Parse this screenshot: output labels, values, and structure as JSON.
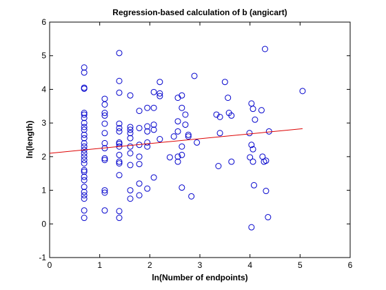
{
  "chart_data": {
    "type": "scatter",
    "title": "Regression-based calculation of b (angicart)",
    "xlabel": "ln(Number of endpoints)",
    "ylabel": "ln(length)",
    "xlim": [
      0,
      6
    ],
    "ylim": [
      -1,
      6
    ],
    "xticks": [
      "0",
      "1",
      "2",
      "3",
      "4",
      "5",
      "6"
    ],
    "yticks": [
      "-1",
      "0",
      "1",
      "2",
      "3",
      "4",
      "5",
      "6"
    ],
    "grid": false,
    "legend": "none",
    "marker_color": "#0000cc",
    "line_color": "#dd0000",
    "regression_line": {
      "x": [
        0,
        5.05
      ],
      "y": [
        2.1,
        2.83
      ]
    },
    "points": [
      {
        "x": 0.69,
        "y": 4.65
      },
      {
        "x": 0.69,
        "y": 4.5
      },
      {
        "x": 0.69,
        "y": 4.05
      },
      {
        "x": 0.69,
        "y": 4.02
      },
      {
        "x": 0.69,
        "y": 3.3
      },
      {
        "x": 0.69,
        "y": 3.25
      },
      {
        "x": 0.69,
        "y": 3.15
      },
      {
        "x": 0.69,
        "y": 3.0
      },
      {
        "x": 0.69,
        "y": 2.88
      },
      {
        "x": 0.69,
        "y": 2.8
      },
      {
        "x": 0.69,
        "y": 2.65
      },
      {
        "x": 0.69,
        "y": 2.55
      },
      {
        "x": 0.69,
        "y": 2.4
      },
      {
        "x": 0.69,
        "y": 2.3
      },
      {
        "x": 0.69,
        "y": 2.2
      },
      {
        "x": 0.69,
        "y": 2.1
      },
      {
        "x": 0.69,
        "y": 2.0
      },
      {
        "x": 0.69,
        "y": 1.9
      },
      {
        "x": 0.69,
        "y": 1.8
      },
      {
        "x": 0.69,
        "y": 1.6
      },
      {
        "x": 0.69,
        "y": 1.55
      },
      {
        "x": 0.69,
        "y": 1.4
      },
      {
        "x": 0.69,
        "y": 1.3
      },
      {
        "x": 0.69,
        "y": 1.1
      },
      {
        "x": 0.69,
        "y": 0.95
      },
      {
        "x": 0.69,
        "y": 0.85
      },
      {
        "x": 0.69,
        "y": 0.75
      },
      {
        "x": 0.69,
        "y": 0.4
      },
      {
        "x": 0.69,
        "y": 0.18
      },
      {
        "x": 1.1,
        "y": 3.72
      },
      {
        "x": 1.1,
        "y": 3.55
      },
      {
        "x": 1.1,
        "y": 3.3
      },
      {
        "x": 1.1,
        "y": 3.22
      },
      {
        "x": 1.1,
        "y": 2.98
      },
      {
        "x": 1.1,
        "y": 2.7
      },
      {
        "x": 1.1,
        "y": 2.4
      },
      {
        "x": 1.1,
        "y": 2.25
      },
      {
        "x": 1.1,
        "y": 1.95
      },
      {
        "x": 1.1,
        "y": 1.9
      },
      {
        "x": 1.1,
        "y": 1.0
      },
      {
        "x": 1.1,
        "y": 0.93
      },
      {
        "x": 1.1,
        "y": 0.4
      },
      {
        "x": 1.39,
        "y": 5.08
      },
      {
        "x": 1.39,
        "y": 4.25
      },
      {
        "x": 1.39,
        "y": 3.9
      },
      {
        "x": 1.39,
        "y": 2.98
      },
      {
        "x": 1.39,
        "y": 2.85
      },
      {
        "x": 1.39,
        "y": 2.75
      },
      {
        "x": 1.39,
        "y": 2.42
      },
      {
        "x": 1.39,
        "y": 2.38
      },
      {
        "x": 1.39,
        "y": 2.3
      },
      {
        "x": 1.39,
        "y": 2.05
      },
      {
        "x": 1.39,
        "y": 1.85
      },
      {
        "x": 1.39,
        "y": 1.8
      },
      {
        "x": 1.39,
        "y": 1.45
      },
      {
        "x": 1.39,
        "y": 0.38
      },
      {
        "x": 1.39,
        "y": 0.18
      },
      {
        "x": 1.61,
        "y": 3.82
      },
      {
        "x": 1.61,
        "y": 2.88
      },
      {
        "x": 1.61,
        "y": 2.8
      },
      {
        "x": 1.61,
        "y": 2.7
      },
      {
        "x": 1.61,
        "y": 2.55
      },
      {
        "x": 1.61,
        "y": 2.3
      },
      {
        "x": 1.61,
        "y": 2.1
      },
      {
        "x": 1.61,
        "y": 1.75
      },
      {
        "x": 1.61,
        "y": 1.0
      },
      {
        "x": 1.61,
        "y": 0.75
      },
      {
        "x": 1.79,
        "y": 3.36
      },
      {
        "x": 1.79,
        "y": 2.85
      },
      {
        "x": 1.79,
        "y": 2.35
      },
      {
        "x": 1.79,
        "y": 2.0
      },
      {
        "x": 1.79,
        "y": 1.78
      },
      {
        "x": 1.79,
        "y": 1.2
      },
      {
        "x": 1.79,
        "y": 0.85
      },
      {
        "x": 1.95,
        "y": 3.45
      },
      {
        "x": 1.95,
        "y": 2.9
      },
      {
        "x": 1.95,
        "y": 2.75
      },
      {
        "x": 1.95,
        "y": 2.42
      },
      {
        "x": 1.95,
        "y": 2.3
      },
      {
        "x": 1.95,
        "y": 1.05
      },
      {
        "x": 2.08,
        "y": 3.92
      },
      {
        "x": 2.08,
        "y": 3.45
      },
      {
        "x": 2.08,
        "y": 2.95
      },
      {
        "x": 2.08,
        "y": 2.8
      },
      {
        "x": 2.08,
        "y": 1.38
      },
      {
        "x": 2.2,
        "y": 4.22
      },
      {
        "x": 2.2,
        "y": 3.88
      },
      {
        "x": 2.2,
        "y": 3.8
      },
      {
        "x": 2.2,
        "y": 2.52
      },
      {
        "x": 2.4,
        "y": 1.98
      },
      {
        "x": 2.48,
        "y": 2.6
      },
      {
        "x": 2.56,
        "y": 3.75
      },
      {
        "x": 2.56,
        "y": 3.05
      },
      {
        "x": 2.56,
        "y": 2.75
      },
      {
        "x": 2.56,
        "y": 2.0
      },
      {
        "x": 2.56,
        "y": 1.85
      },
      {
        "x": 2.64,
        "y": 3.82
      },
      {
        "x": 2.64,
        "y": 3.45
      },
      {
        "x": 2.64,
        "y": 2.3
      },
      {
        "x": 2.64,
        "y": 2.05
      },
      {
        "x": 2.64,
        "y": 1.08
      },
      {
        "x": 2.71,
        "y": 3.25
      },
      {
        "x": 2.71,
        "y": 2.95
      },
      {
        "x": 2.77,
        "y": 2.65
      },
      {
        "x": 2.77,
        "y": 2.6
      },
      {
        "x": 2.83,
        "y": 0.82
      },
      {
        "x": 2.89,
        "y": 4.4
      },
      {
        "x": 2.94,
        "y": 2.42
      },
      {
        "x": 3.33,
        "y": 3.25
      },
      {
        "x": 3.37,
        "y": 1.72
      },
      {
        "x": 3.4,
        "y": 3.18
      },
      {
        "x": 3.4,
        "y": 2.7
      },
      {
        "x": 3.5,
        "y": 4.22
      },
      {
        "x": 3.56,
        "y": 3.75
      },
      {
        "x": 3.58,
        "y": 3.3
      },
      {
        "x": 3.63,
        "y": 3.22
      },
      {
        "x": 3.63,
        "y": 1.85
      },
      {
        "x": 3.99,
        "y": 2.7
      },
      {
        "x": 4.0,
        "y": 1.98
      },
      {
        "x": 4.03,
        "y": 3.58
      },
      {
        "x": 4.03,
        "y": 2.35
      },
      {
        "x": 4.03,
        "y": -0.1
      },
      {
        "x": 4.06,
        "y": 3.42
      },
      {
        "x": 4.06,
        "y": 2.22
      },
      {
        "x": 4.06,
        "y": 1.85
      },
      {
        "x": 4.08,
        "y": 1.15
      },
      {
        "x": 4.1,
        "y": 3.1
      },
      {
        "x": 4.23,
        "y": 3.38
      },
      {
        "x": 4.25,
        "y": 2.0
      },
      {
        "x": 4.28,
        "y": 1.85
      },
      {
        "x": 4.3,
        "y": 5.2
      },
      {
        "x": 4.32,
        "y": 1.88
      },
      {
        "x": 4.32,
        "y": 0.98
      },
      {
        "x": 4.36,
        "y": 0.2
      },
      {
        "x": 4.38,
        "y": 2.75
      },
      {
        "x": 5.05,
        "y": 3.95
      }
    ]
  }
}
